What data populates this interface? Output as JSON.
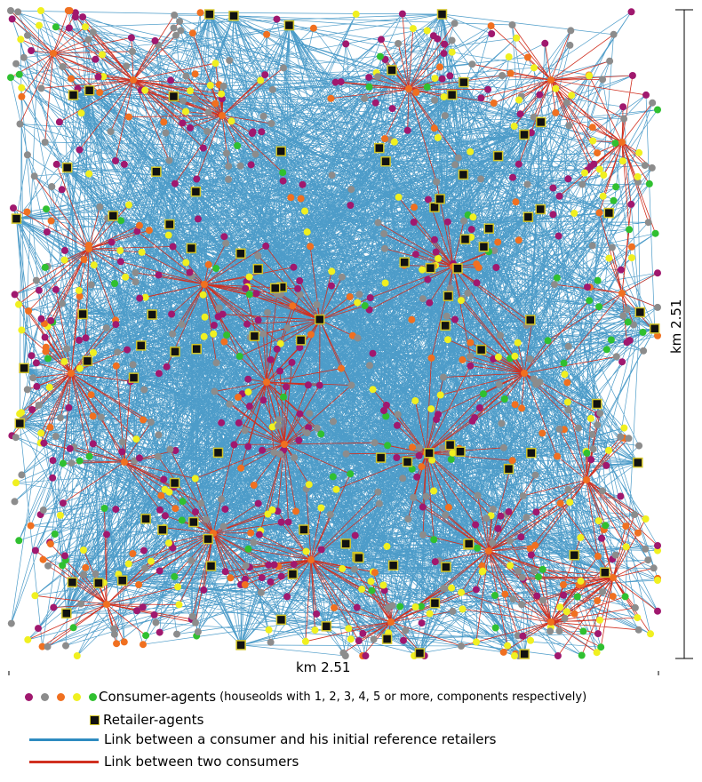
{
  "scale": {
    "x_label": "km 2.51",
    "y_label": "km 2.51"
  },
  "legend": {
    "consumers_main": "Consumer-agents",
    "consumers_note": "(houseolds with 1, 2, 3, 4, 5 or more, components respectively)",
    "retailers": "Retailer-agents",
    "link_retailer": "Link between a consumer and his initial reference retailers",
    "link_consumers": "Link between two consumers"
  },
  "colors": {
    "household_1": "#a0186e",
    "household_2": "#8c8c8c",
    "household_3": "#f07020",
    "household_4": "#f0f020",
    "household_5_plus": "#30c030",
    "retailer_fill": "#111111",
    "retailer_border": "#d4c62a",
    "link_retailer": "#2e8bc0",
    "link_consumers": "#d03020"
  }
}
